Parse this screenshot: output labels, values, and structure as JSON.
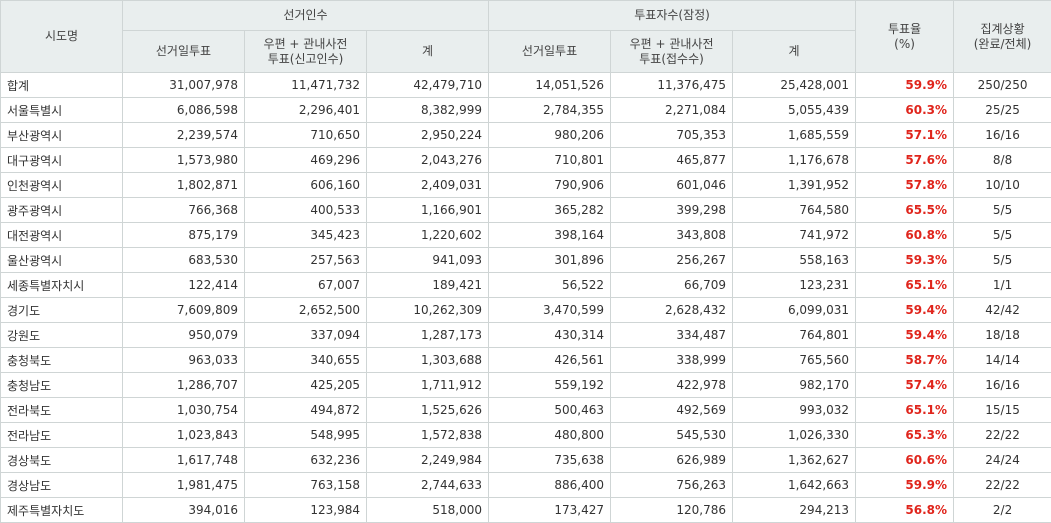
{
  "header": {
    "region": "시도명",
    "electors": "선거인수",
    "voters": "투표자수(잠정)",
    "rate": "투표율\n(%)",
    "status": "집계상황\n(완료/전체)",
    "sub": [
      "선거일투표",
      "우편 + 관내사전\n투표(신고인수)",
      "계",
      "선거일투표",
      "우편 + 관내사전\n투표(접수수)",
      "계"
    ]
  },
  "table": {
    "rows": [
      [
        "합계",
        "31,007,978",
        "11,471,732",
        "42,479,710",
        "14,051,526",
        "11,376,475",
        "25,428,001",
        "59.9%",
        "250/250"
      ],
      [
        "서울특별시",
        "6,086,598",
        "2,296,401",
        "8,382,999",
        "2,784,355",
        "2,271,084",
        "5,055,439",
        "60.3%",
        "25/25"
      ],
      [
        "부산광역시",
        "2,239,574",
        "710,650",
        "2,950,224",
        "980,206",
        "705,353",
        "1,685,559",
        "57.1%",
        "16/16"
      ],
      [
        "대구광역시",
        "1,573,980",
        "469,296",
        "2,043,276",
        "710,801",
        "465,877",
        "1,176,678",
        "57.6%",
        "8/8"
      ],
      [
        "인천광역시",
        "1,802,871",
        "606,160",
        "2,409,031",
        "790,906",
        "601,046",
        "1,391,952",
        "57.8%",
        "10/10"
      ],
      [
        "광주광역시",
        "766,368",
        "400,533",
        "1,166,901",
        "365,282",
        "399,298",
        "764,580",
        "65.5%",
        "5/5"
      ],
      [
        "대전광역시",
        "875,179",
        "345,423",
        "1,220,602",
        "398,164",
        "343,808",
        "741,972",
        "60.8%",
        "5/5"
      ],
      [
        "울산광역시",
        "683,530",
        "257,563",
        "941,093",
        "301,896",
        "256,267",
        "558,163",
        "59.3%",
        "5/5"
      ],
      [
        "세종특별자치시",
        "122,414",
        "67,007",
        "189,421",
        "56,522",
        "66,709",
        "123,231",
        "65.1%",
        "1/1"
      ],
      [
        "경기도",
        "7,609,809",
        "2,652,500",
        "10,262,309",
        "3,470,599",
        "2,628,432",
        "6,099,031",
        "59.4%",
        "42/42"
      ],
      [
        "강원도",
        "950,079",
        "337,094",
        "1,287,173",
        "430,314",
        "334,487",
        "764,801",
        "59.4%",
        "18/18"
      ],
      [
        "충청북도",
        "963,033",
        "340,655",
        "1,303,688",
        "426,561",
        "338,999",
        "765,560",
        "58.7%",
        "14/14"
      ],
      [
        "충청남도",
        "1,286,707",
        "425,205",
        "1,711,912",
        "559,192",
        "422,978",
        "982,170",
        "57.4%",
        "16/16"
      ],
      [
        "전라북도",
        "1,030,754",
        "494,872",
        "1,525,626",
        "500,463",
        "492,569",
        "993,032",
        "65.1%",
        "15/15"
      ],
      [
        "전라남도",
        "1,023,843",
        "548,995",
        "1,572,838",
        "480,800",
        "545,530",
        "1,026,330",
        "65.3%",
        "22/22"
      ],
      [
        "경상북도",
        "1,617,748",
        "632,236",
        "2,249,984",
        "735,638",
        "626,989",
        "1,362,627",
        "60.6%",
        "24/24"
      ],
      [
        "경상남도",
        "1,981,475",
        "763,158",
        "2,744,633",
        "886,400",
        "756,263",
        "1,642,663",
        "59.9%",
        "22/22"
      ],
      [
        "제주특별자치도",
        "394,016",
        "123,984",
        "518,000",
        "173,427",
        "120,786",
        "294,213",
        "56.8%",
        "2/2"
      ]
    ]
  }
}
